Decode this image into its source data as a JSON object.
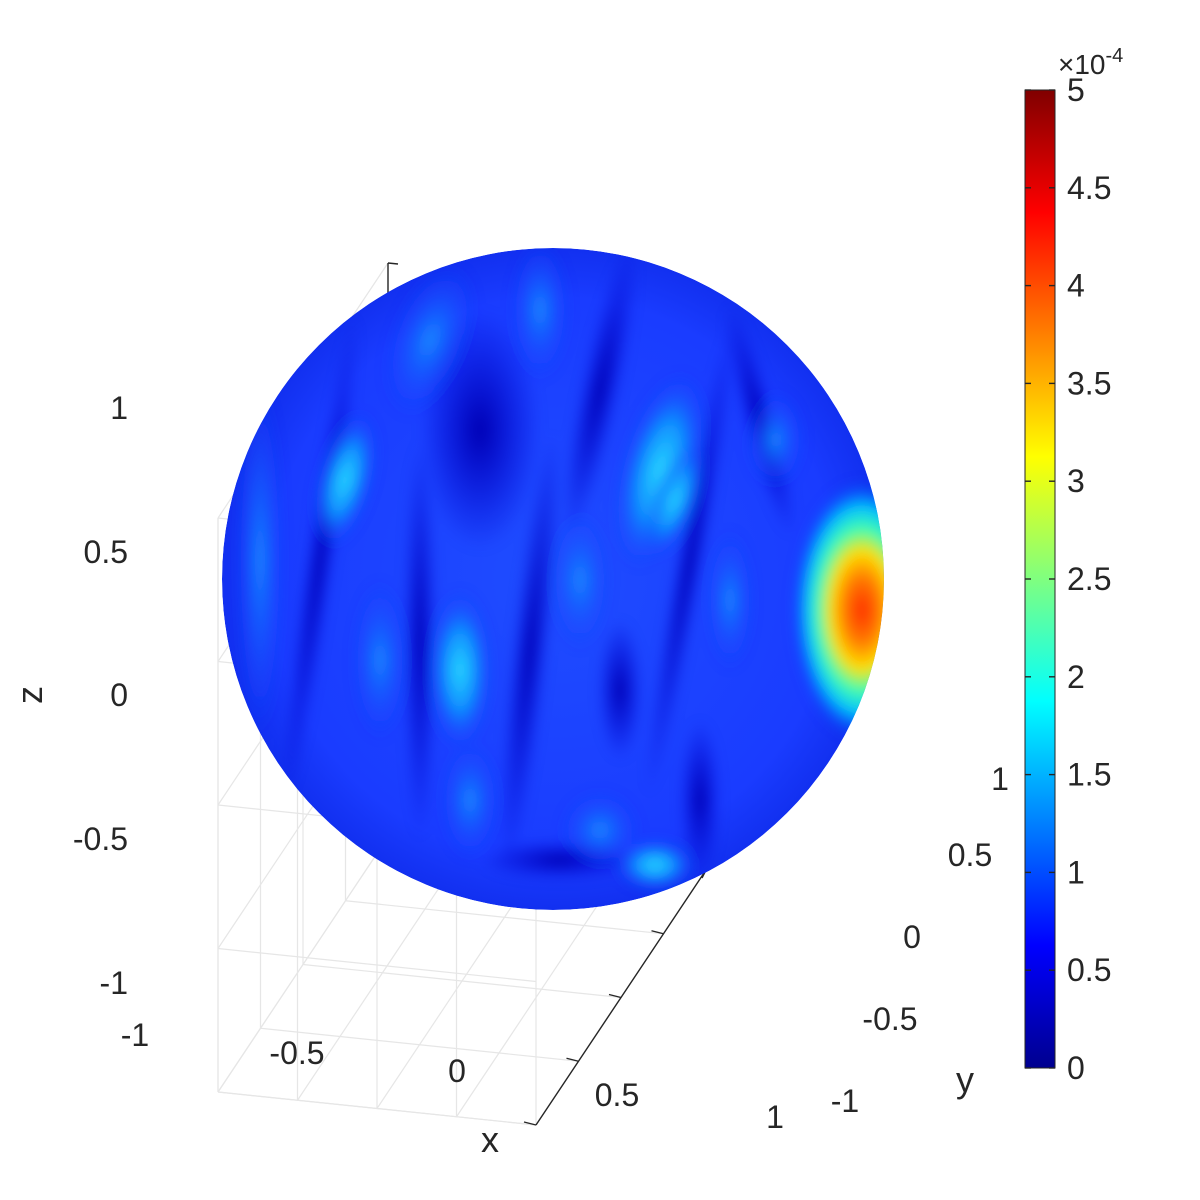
{
  "chart_data": {
    "type": "surface",
    "surface": "unit-sphere",
    "axes": {
      "x": {
        "label": "x",
        "range": [
          -1,
          1
        ],
        "ticks": [
          -1,
          -0.5,
          0,
          0.5,
          1
        ],
        "tick_labels": [
          "-1",
          "-0.5",
          "0",
          "0.5",
          "1"
        ]
      },
      "y": {
        "label": "y",
        "range": [
          -1,
          1
        ],
        "ticks": [
          -1,
          -0.5,
          0,
          0.5,
          1
        ],
        "tick_labels": [
          "-1",
          "-0.5",
          "0",
          "0.5",
          "1"
        ]
      },
      "z": {
        "label": "z",
        "range": [
          -1,
          1
        ],
        "ticks": [
          -1,
          -0.5,
          0,
          0.5,
          1
        ],
        "tick_labels": [
          "-1",
          "-0.5",
          "0",
          "0.5",
          "1"
        ]
      }
    },
    "grid": true,
    "colorbar": {
      "colormap": "jet",
      "placement": "right",
      "range": [
        0,
        0.0005
      ],
      "exponent_label": "×10",
      "exponent_power": "-4",
      "ticks": [
        0,
        0.5,
        1,
        1.5,
        2,
        2.5,
        3,
        3.5,
        4,
        4.5,
        5
      ],
      "tick_labels": [
        "0",
        "0.5",
        "1",
        "1.5",
        "2",
        "2.5",
        "3",
        "3.5",
        "4",
        "4.5",
        "5"
      ]
    },
    "value_range_shown": {
      "min": 0,
      "max": 0.00045
    }
  },
  "colors": {
    "axis": "#262626",
    "grid": "#e6e6e6",
    "jet_stops": [
      "#00008f",
      "#0000ff",
      "#00ffff",
      "#ffff00",
      "#ff0000",
      "#800000"
    ]
  }
}
